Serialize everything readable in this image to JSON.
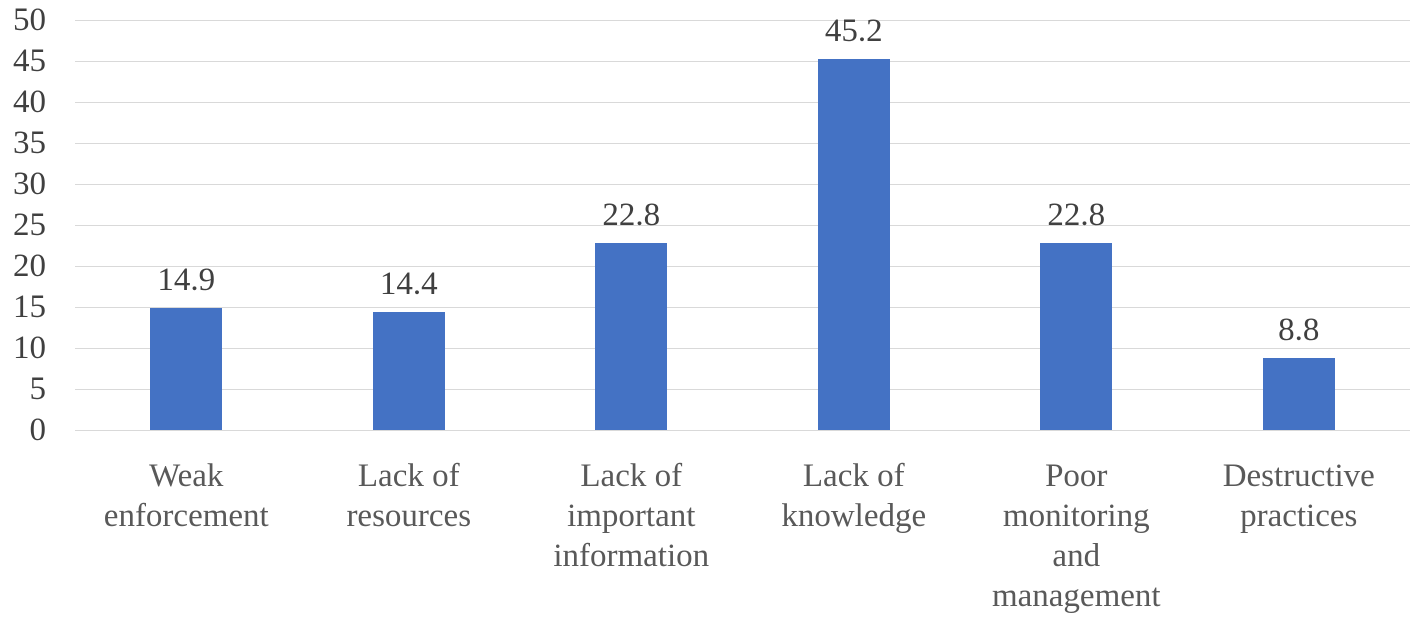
{
  "chart_data": {
    "type": "bar",
    "title": "",
    "xlabel": "",
    "ylabel": "",
    "categories": [
      "Weak enforcement",
      "Lack of resources",
      "Lack of important information",
      "Lack of knowledge",
      "Poor monitoring and management",
      "Destructive practices"
    ],
    "category_lines": [
      [
        "Weak",
        "enforcement"
      ],
      [
        "Lack of",
        "resources"
      ],
      [
        "Lack of",
        "important",
        "information"
      ],
      [
        "Lack of",
        "knowledge"
      ],
      [
        "Poor",
        "monitoring",
        "and",
        "management"
      ],
      [
        "Destructive",
        "practices"
      ]
    ],
    "values": [
      14.9,
      14.4,
      22.8,
      45.2,
      22.8,
      8.8
    ],
    "data_labels": [
      "14.9",
      "14.4",
      "22.8",
      "45.2",
      "22.8",
      "8.8"
    ],
    "ylim": [
      0,
      50
    ],
    "ytick_interval": 5,
    "yticks": [
      0,
      5,
      10,
      15,
      20,
      25,
      30,
      35,
      40,
      45,
      50
    ],
    "grid": true,
    "legend_position": "none",
    "colors": {
      "bar": "#4472C4",
      "gridline": "#d9d9d9",
      "tick_label": "#404040",
      "data_label": "#404040",
      "category_label": "#595959"
    }
  }
}
